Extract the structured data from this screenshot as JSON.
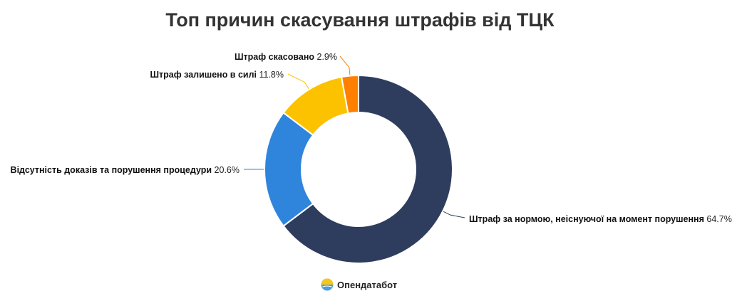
{
  "chart_data": {
    "type": "pie",
    "variant": "donut",
    "title": "Топ причин скасування штрафів від ТЦК",
    "slices": [
      {
        "label": "Штраф за нормою, неіснуючої на момент порушення",
        "value": 64.7,
        "value_label": "64.7%",
        "color": "#2e3d5e"
      },
      {
        "label": "Відсутність доказів та порушення процедури",
        "value": 20.6,
        "value_label": "20.6%",
        "color": "#2f84dc"
      },
      {
        "label": "Штраф залишено в силі",
        "value": 11.8,
        "value_label": "11.8%",
        "color": "#fcc200"
      },
      {
        "label": "Штраф скасовано",
        "value": 2.9,
        "value_label": "2.9%",
        "color": "#ff8000"
      }
    ],
    "legend": "none",
    "labels": "outside-with-leader-lines"
  },
  "brand": {
    "name": "Опендатабот",
    "logo_icon": "sun-sea-logo-icon"
  }
}
